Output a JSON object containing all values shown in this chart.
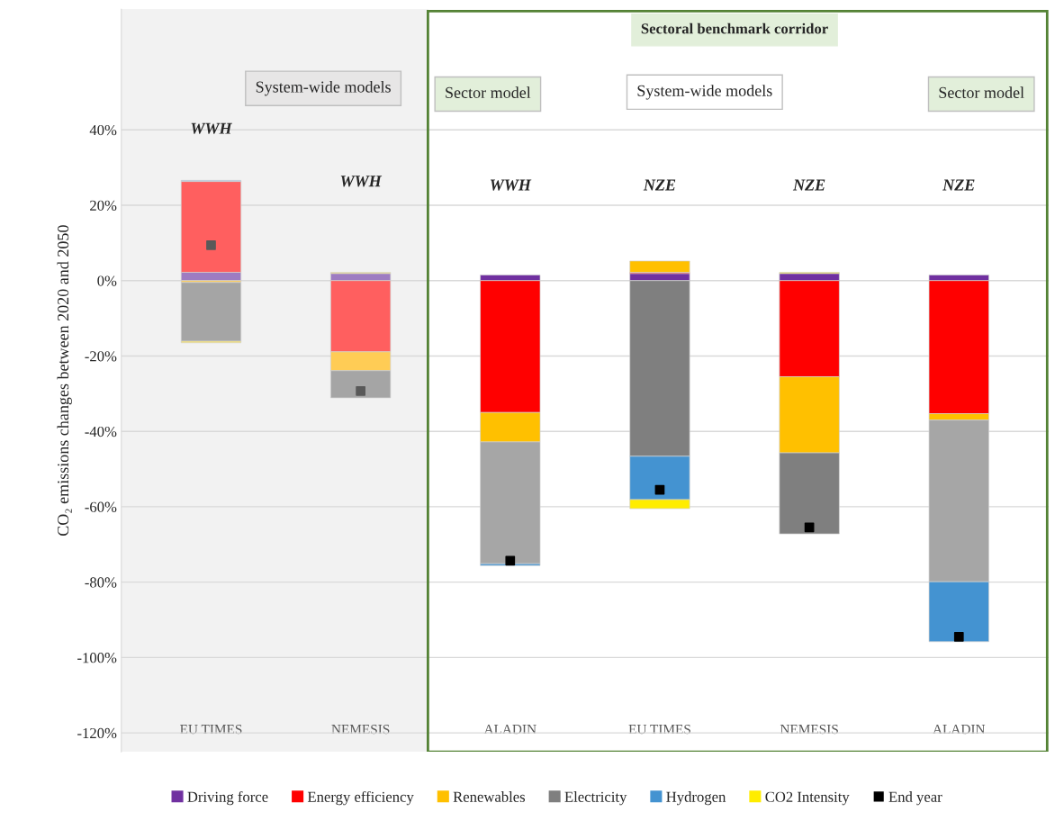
{
  "chart_data": {
    "type": "bar",
    "stacked": true,
    "ylabel": "CO₂ emissions changes between 2020 and 2050",
    "categories": [
      "EU TIMES",
      "NEMESIS",
      "ALADIN",
      "EU TIMES",
      "NEMESIS",
      "ALADIN"
    ],
    "series": [
      {
        "name": "Driving force",
        "color": "#7030a0",
        "colors": [
          "#9e7cc1",
          "#9e7cc1",
          "#7030a0",
          "#7030a0",
          "#7030a0",
          "#7030a0"
        ],
        "values": [
          2.2,
          1.9,
          1.5,
          1.9,
          1.9,
          1.5
        ]
      },
      {
        "name": "Energy efficiency",
        "color": "#ff0000",
        "colors": [
          "#ff5f5f",
          "#ff5f5f",
          "#ff0000",
          "#ff0000",
          "#ff0000",
          "#ff0000"
        ],
        "values": [
          24.1,
          -18.9,
          -35.0,
          0.3,
          -25.5,
          -35.3
        ]
      },
      {
        "name": "Renewables",
        "color": "#ffc000",
        "colors": [
          "#ffcc55",
          "#ffcc55",
          "#ffc000",
          "#ffc000",
          "#ffc000",
          "#ffc000"
        ],
        "values": [
          -0.5,
          -5.0,
          -7.8,
          3.0,
          -20.2,
          -1.7
        ]
      },
      {
        "name": "Electricity",
        "color": "#7f7f7f",
        "colors": [
          "#a5a5a5",
          "#a5a5a5",
          "#a6a6a6",
          "#7f7f7f",
          "#7f7f7f",
          "#a6a6a6"
        ],
        "values": [
          -15.6,
          -7.2,
          -32.3,
          -46.6,
          -21.5,
          -42.9
        ]
      },
      {
        "name": "Hydrogen",
        "color": "#4493d1",
        "colors": [
          "#9dc3e6",
          "#9dc3e6",
          "#4493d1",
          "#4493d1",
          "#4493d1",
          "#4493d1"
        ],
        "values": [
          0.3,
          null,
          -0.5,
          -11.5,
          null,
          -15.9
        ]
      },
      {
        "name": "CO2 Intensity",
        "color": "#ffed00",
        "colors": [
          "#ffe559",
          "#ffe559",
          "#ffed00",
          "#ffed00",
          "#ffed00",
          "#ffed00"
        ],
        "values": [
          -0.4,
          0.3,
          null,
          -2.4,
          0.3,
          null
        ]
      },
      {
        "name": "End year",
        "type": "scatter",
        "marker": "square",
        "color": "#000000",
        "colors": [
          "#595959",
          "#595959",
          "#000000",
          "#000000",
          "#000000",
          "#000000"
        ],
        "values": [
          9.4,
          -29.3,
          -74.3,
          -55.5,
          -65.5,
          -94.5
        ]
      }
    ],
    "ylim": [
      -125,
      72
    ],
    "yticks": [
      {
        "value": 40,
        "label": "40%"
      },
      {
        "value": 20,
        "label": "20%"
      },
      {
        "value": 0,
        "label": "0%"
      },
      {
        "value": -20,
        "label": "-20%"
      },
      {
        "value": -40,
        "label": "-40%"
      },
      {
        "value": -60,
        "label": "-60%"
      },
      {
        "value": -80,
        "label": "-80%"
      },
      {
        "value": -100,
        "label": "-100%"
      },
      {
        "value": -120,
        "label": "-120%"
      }
    ],
    "grid": "y",
    "legend": "bottom",
    "annotations": [
      "Sectoral benchmark corridor",
      "System-wide models",
      "Sector model",
      "System-wide models",
      "Sector model",
      "WWH",
      "WWH",
      "WWH",
      "NZE",
      "NZE",
      "NZE"
    ]
  }
}
